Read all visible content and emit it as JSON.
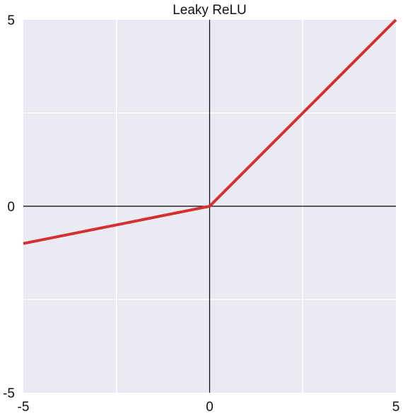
{
  "chart_data": {
    "type": "line",
    "title": "Leaky ReLU",
    "xlabel": "",
    "ylabel": "",
    "xlim": [
      -5,
      5
    ],
    "ylim": [
      -5,
      5
    ],
    "xticks": [
      -5,
      0,
      5
    ],
    "xtick_labels": [
      "-5",
      "0",
      "5"
    ],
    "yticks": [
      -5,
      0,
      5
    ],
    "ytick_labels": [
      "-5",
      "0",
      "5"
    ],
    "grid": true,
    "minor_grid_step": 2.5,
    "background_color": "#eaeaf2",
    "grid_color": "#ffffff",
    "axis_line_color": "#000000",
    "series": [
      {
        "color": "#d62f2f",
        "x": [
          -5,
          -2.5,
          0,
          2.5,
          5
        ],
        "y": [
          -1,
          -0.5,
          0,
          2.5,
          5
        ]
      }
    ]
  }
}
